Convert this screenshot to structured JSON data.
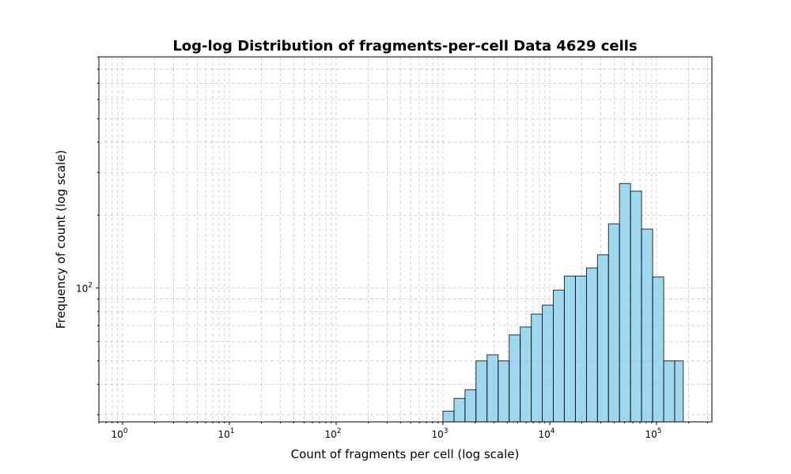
{
  "chart_data": {
    "type": "bar",
    "title": "Log-log Distribution of fragments-per-cell Data 4629 cells",
    "xlabel": "Count of fragments per cell (log scale)",
    "ylabel": "Frequency of count (log scale)",
    "xscale": "log",
    "yscale": "log",
    "xlim": [
      0.6,
      330000
    ],
    "ylim": [
      28,
      900
    ],
    "grid": true,
    "x_tick_labels": [
      {
        "base": "10",
        "exp": "0",
        "value": 1
      },
      {
        "base": "10",
        "exp": "1",
        "value": 10
      },
      {
        "base": "10",
        "exp": "2",
        "value": 100
      },
      {
        "base": "10",
        "exp": "3",
        "value": 1000
      },
      {
        "base": "10",
        "exp": "4",
        "value": 10000
      },
      {
        "base": "10",
        "exp": "5",
        "value": 100000
      }
    ],
    "y_tick_labels": [
      {
        "base": "10",
        "exp": "2",
        "value": 100
      }
    ],
    "bin_edges": [
      1000,
      1270,
      1610,
      2040,
      2590,
      3290,
      4170,
      5290,
      6710,
      8510,
      10800,
      13700,
      17400,
      22100,
      28000,
      35500,
      45000,
      57100,
      72500,
      92000,
      116700,
      148000,
      178000
    ],
    "counts": [
      31,
      35,
      38,
      50,
      53,
      50,
      64,
      69,
      78,
      85,
      98,
      112,
      112,
      121,
      137,
      184,
      270,
      251,
      175,
      111,
      50,
      50
    ],
    "bar_color": "#87CEEB"
  }
}
